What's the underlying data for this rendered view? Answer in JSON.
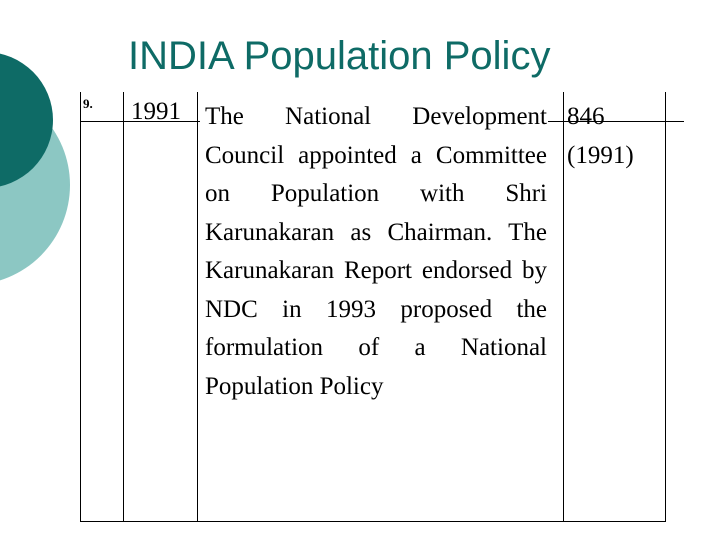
{
  "slide": {
    "title": "INDIA Population Policy",
    "colors": {
      "title": "#0e6b66",
      "circle_dark": "#0e6b66",
      "circle_light": "#8cc7c3"
    }
  },
  "table": {
    "row": {
      "number": "9.",
      "year": "1991",
      "description": "The National Development Council appointed a Committee on Population with Shri Karunakaran as Chairman. The Karunakaran Report endorsed by NDC in 1993 proposed the formulation of a National Population Policy",
      "reference_line1": "846",
      "reference_line2": "(1991)"
    }
  }
}
